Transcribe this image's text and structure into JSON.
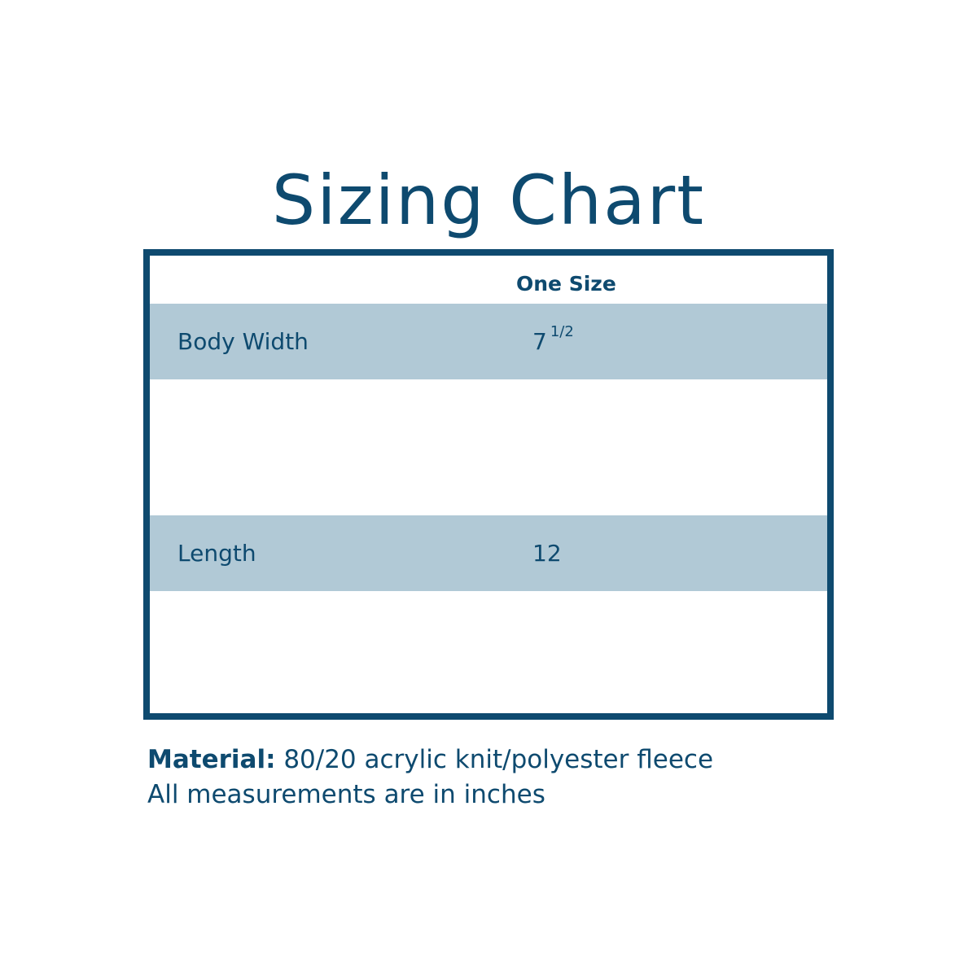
{
  "title": "Sizing Chart",
  "colors": {
    "primary": "#0e4a6f",
    "row_highlight": "#b1c9d6"
  },
  "table": {
    "column_header": "One Size",
    "rows": [
      {
        "label": "Body Width",
        "value": "7",
        "fraction": "1/2"
      },
      {
        "label": "Length",
        "value": "12",
        "fraction": ""
      }
    ]
  },
  "notes": {
    "material_label": "Material:",
    "material_value": " 80/20 acrylic knit/polyester fleece",
    "units": "All measurements are in inches"
  }
}
